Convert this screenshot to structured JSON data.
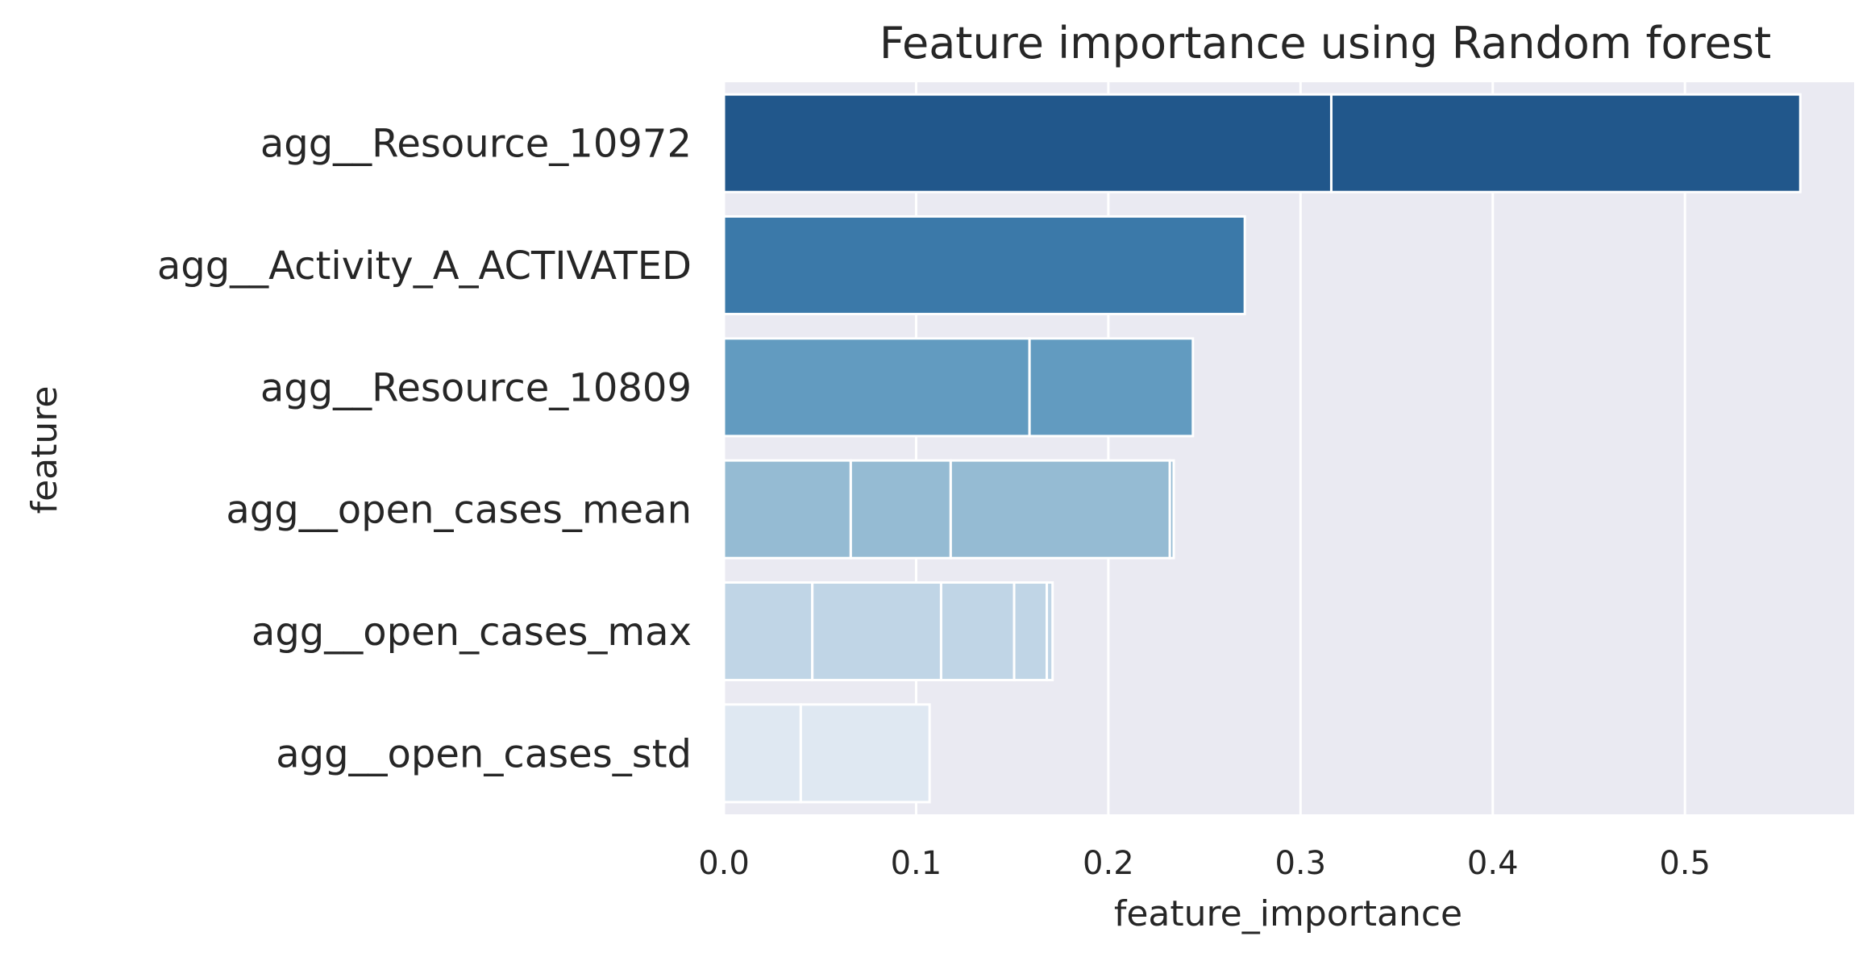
{
  "chart_data": {
    "type": "bar",
    "orientation": "horizontal",
    "title": "Feature importance using Random forest",
    "xlabel": "feature_importance",
    "ylabel": "feature",
    "xlim": [
      0,
      0.588
    ],
    "xticks": [
      0.0,
      0.1,
      0.2,
      0.3,
      0.4,
      0.5
    ],
    "xtick_labels": [
      "0.0",
      "0.1",
      "0.2",
      "0.3",
      "0.4",
      "0.5"
    ],
    "grid": true,
    "categories": [
      "agg__Resource_10972",
      "agg__Activity_A_ACTIVATED",
      "agg__Resource_10809",
      "agg__open_cases_mean",
      "agg__open_cases_max",
      "agg__open_cases_std"
    ],
    "bars": [
      {
        "category": "agg__Resource_10972",
        "segments": [
          0.316,
          0.56
        ],
        "color": "#21578b"
      },
      {
        "category": "agg__Activity_A_ACTIVATED",
        "segments": [
          0.271
        ],
        "color": "#3b79a9"
      },
      {
        "category": "agg__Resource_10809",
        "segments": [
          0.159,
          0.244
        ],
        "color": "#629bc0"
      },
      {
        "category": "agg__open_cases_mean",
        "segments": [
          0.066,
          0.118,
          0.232,
          0.234
        ],
        "color": "#95bbd3"
      },
      {
        "category": "agg__open_cases_max",
        "segments": [
          0.046,
          0.113,
          0.151,
          0.168,
          0.171
        ],
        "color": "#c0d5e6"
      },
      {
        "category": "agg__open_cases_std",
        "segments": [
          0.04,
          0.107
        ],
        "color": "#dfe8f2"
      }
    ],
    "colors": {
      "plot_background": "#eaeaf2",
      "grid": "#ffffff",
      "bar_edge": "#ffffff",
      "text": "#262626"
    }
  }
}
